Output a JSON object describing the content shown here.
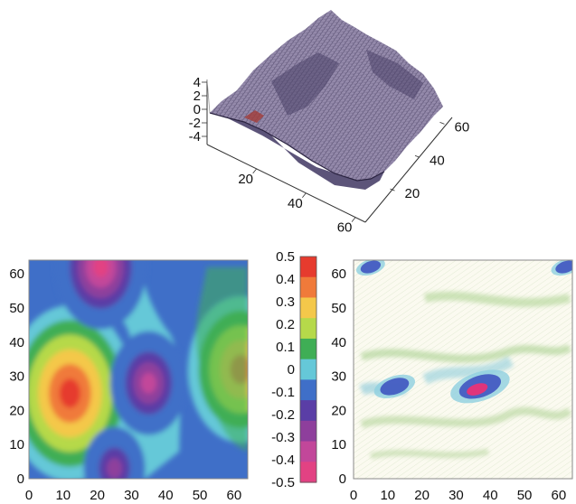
{
  "chart_data": [
    {
      "type": "surface",
      "grid_size": 64,
      "x_ticks": [
        "20",
        "40",
        "60"
      ],
      "y_ticks": [
        "20",
        "40",
        "60"
      ],
      "z_ticks": [
        "4",
        "2",
        "0",
        "-2",
        "-4"
      ],
      "zlim": [
        -4,
        4
      ],
      "shading": "purple-gray with dark speckled mesh, lower near x=0 edge rising to plateau"
    },
    {
      "type": "heatmap",
      "style": "filled contour",
      "x_ticks": [
        "0",
        "10",
        "20",
        "30",
        "40",
        "50",
        "60"
      ],
      "y_ticks": [
        "0",
        "10",
        "20",
        "30",
        "40",
        "50",
        "60"
      ],
      "xlim": [
        0,
        64
      ],
      "ylim": [
        0,
        64
      ],
      "features": [
        {
          "x": 12,
          "y": 25,
          "value": 0.5
        },
        {
          "x": 62,
          "y": 32,
          "value": 0.4
        },
        {
          "x": 35,
          "y": 28,
          "value": -0.4
        },
        {
          "x": 21,
          "y": 62,
          "value": -0.5
        },
        {
          "x": 25,
          "y": 3,
          "value": -0.3
        }
      ]
    },
    {
      "type": "colorbar",
      "tick_labels": [
        "0.5",
        "0.4",
        "0.3",
        "0.2",
        "0.1",
        "0",
        "-0.1",
        "-0.2",
        "-0.3",
        "-0.4",
        "-0.5"
      ],
      "range": [
        -0.5,
        0.5
      ],
      "colors": [
        "#e63b2e",
        "#f07a3a",
        "#f4c84a",
        "#b6d94a",
        "#3fae55",
        "#65c8d8",
        "#3f6fc8",
        "#5a3ea6",
        "#8e3f9c",
        "#c2479a",
        "#e24283"
      ]
    },
    {
      "type": "heatmap",
      "style": "textured field",
      "x_ticks": [
        "0",
        "10",
        "20",
        "30",
        "40",
        "50",
        "60"
      ],
      "y_ticks": [
        "0",
        "10",
        "20",
        "30",
        "40",
        "50",
        "60"
      ],
      "xlim": [
        0,
        64
      ],
      "ylim": [
        0,
        64
      ],
      "features": [
        {
          "x": 37,
          "y": 27,
          "value": 0.4
        },
        {
          "x": 12,
          "y": 27,
          "value": 0.25
        },
        {
          "x": 5,
          "y": 62,
          "value": 0.15
        },
        {
          "x": 62,
          "y": 62,
          "value": 0.15
        }
      ]
    }
  ]
}
